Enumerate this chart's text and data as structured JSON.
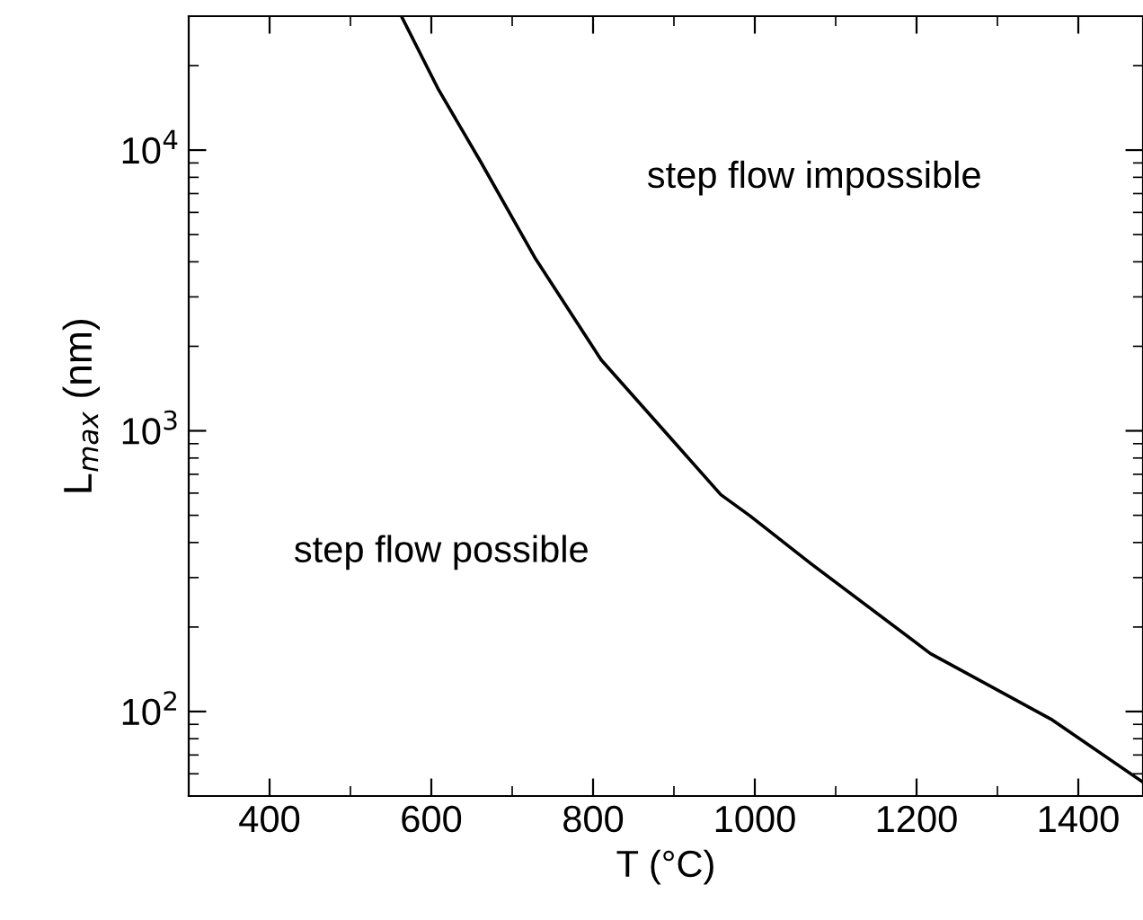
{
  "chart_data": {
    "type": "line",
    "xlabel": "T (°C)",
    "ylabel": "L$_{max}$ (nm)",
    "x": [
      563,
      609,
      661,
      728,
      810,
      958,
      994,
      1069,
      1217,
      1366,
      1480
    ],
    "series": [
      {
        "color": "#000000",
        "values": [
          30000,
          16400,
          9090,
          4140,
          1790,
          592,
          498,
          337,
          161,
          94,
          56
        ]
      }
    ],
    "xlim": [
      300,
      1480
    ],
    "xticks": [
      400,
      600,
      800,
      1000,
      1200,
      1400
    ],
    "log": "y",
    "ylim": [
      50,
      30000
    ],
    "yticks": [
      {
        "value": 100,
        "label": "10$^{2}$"
      },
      {
        "value": 1000,
        "label": "10$^{3}$"
      },
      {
        "value": 10000,
        "label": "10$^{4}$"
      }
    ],
    "annotations": [
      "step flow impossible",
      "step flow possible"
    ],
    "grid": false,
    "legend": false,
    "marker": "none",
    "line_style": "solid"
  }
}
